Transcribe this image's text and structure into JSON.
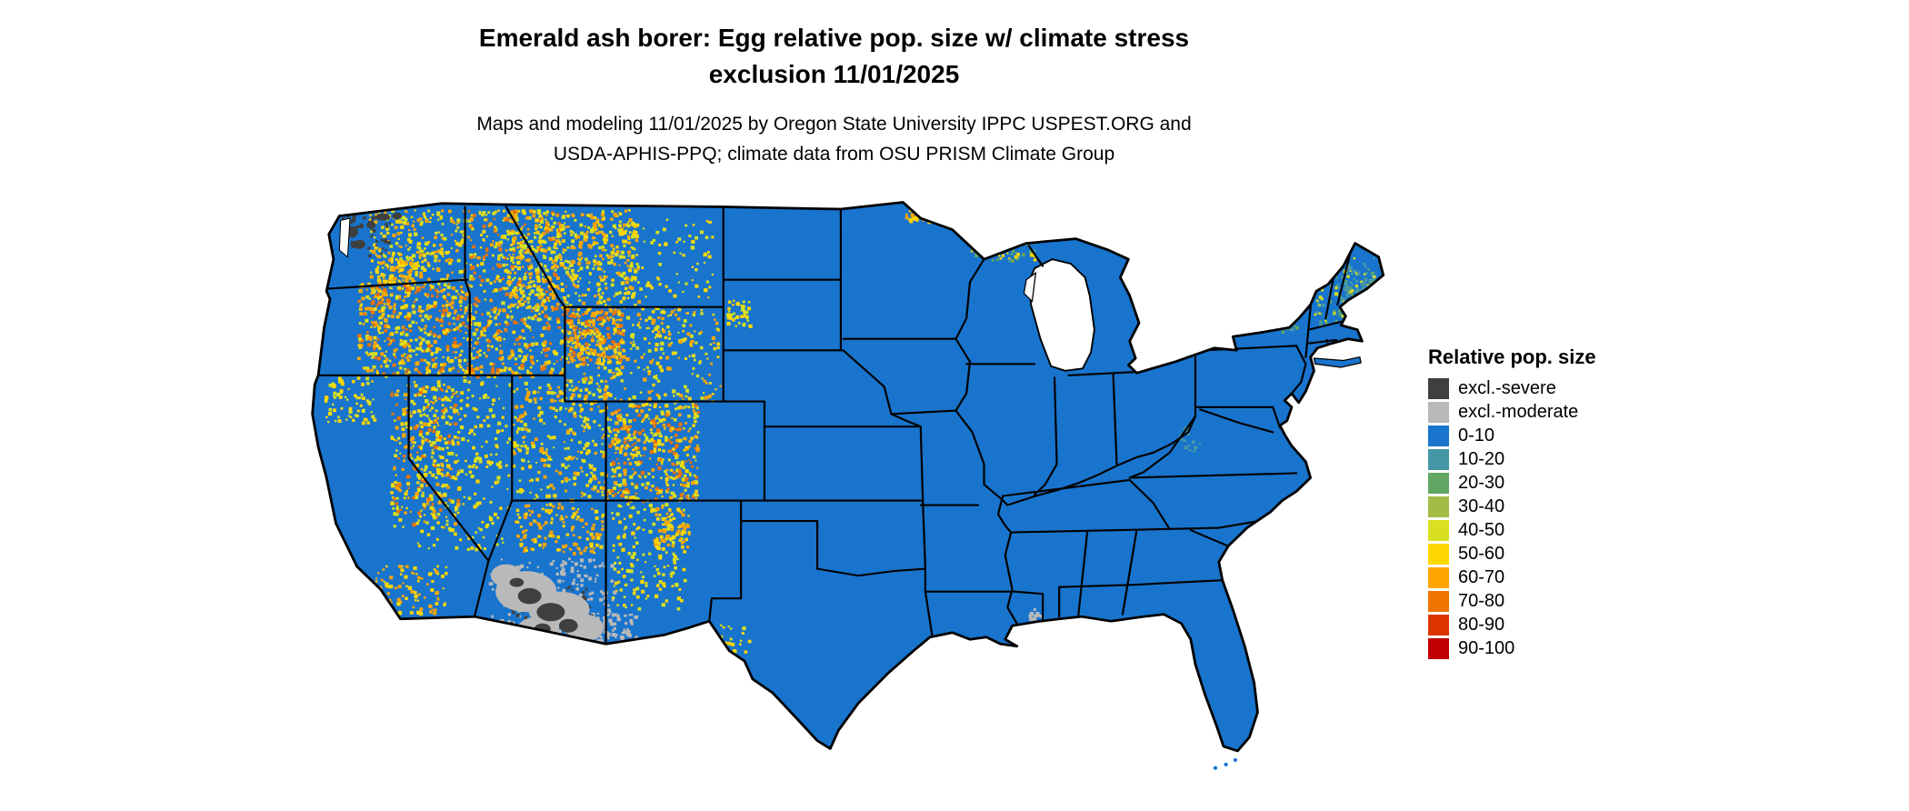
{
  "title": {
    "line1": "Emerald ash borer: Egg relative pop. size w/ climate stress",
    "line2": "exclusion 11/01/2025"
  },
  "subtitle": {
    "line1": "Maps and modeling 11/01/2025 by Oregon State University IPPC USPEST.ORG and",
    "line2": "USDA-APHIS-PPQ; climate data from OSU PRISM Climate Group"
  },
  "legend": {
    "title": "Relative pop. size",
    "entries": [
      {
        "label": "excl.-severe",
        "color": "#3f3f3f"
      },
      {
        "label": "excl.-moderate",
        "color": "#b9b9b9"
      },
      {
        "label": "0-10",
        "color": "#1874cd"
      },
      {
        "label": "10-20",
        "color": "#4597a8"
      },
      {
        "label": "20-30",
        "color": "#62a663"
      },
      {
        "label": "30-40",
        "color": "#a2bc47"
      },
      {
        "label": "40-50",
        "color": "#d8e021"
      },
      {
        "label": "50-60",
        "color": "#ffd700"
      },
      {
        "label": "60-70",
        "color": "#ffa500"
      },
      {
        "label": "70-80",
        "color": "#ee7300"
      },
      {
        "label": "80-90",
        "color": "#dd3500"
      },
      {
        "label": "90-100",
        "color": "#c00000"
      }
    ]
  },
  "map": {
    "base_color": "#1874cd",
    "state_border_color": "#000000",
    "water_color": "#ffffff",
    "excl_severe_color": "#3f3f3f",
    "excl_moderate_color": "#b9b9b9"
  }
}
